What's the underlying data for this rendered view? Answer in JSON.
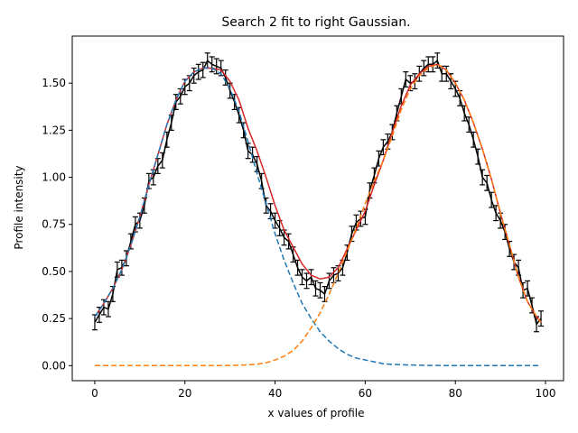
{
  "chart_data": {
    "type": "line",
    "title": "Search 2 fit to right Gaussian.",
    "xlabel": "x values of profile",
    "ylabel": "Profile intensity",
    "xlim": [
      -5,
      104
    ],
    "ylim": [
      -0.08,
      1.75
    ],
    "xticks": [
      0,
      20,
      40,
      60,
      80,
      100
    ],
    "xtick_labels": [
      "0",
      "20",
      "40",
      "60",
      "80",
      "100"
    ],
    "yticks": [
      0.0,
      0.25,
      0.5,
      0.75,
      1.0,
      1.25,
      1.5
    ],
    "ytick_labels": [
      "0.00",
      "0.25",
      "0.50",
      "0.75",
      "1.00",
      "1.25",
      "1.50"
    ],
    "grid": false,
    "legend": "none",
    "series": [
      {
        "style": "errorbar",
        "color": "#000000",
        "x": [
          0,
          1,
          2,
          3,
          4,
          5,
          6,
          7,
          8,
          9,
          10,
          11,
          12,
          13,
          14,
          15,
          16,
          17,
          18,
          19,
          20,
          21,
          22,
          23,
          24,
          25,
          26,
          27,
          28,
          29,
          30,
          31,
          32,
          33,
          34,
          35,
          36,
          37,
          38,
          39,
          40,
          41,
          42,
          43,
          44,
          45,
          46,
          47,
          48,
          49,
          50,
          51,
          52,
          53,
          54,
          55,
          56,
          57,
          58,
          59,
          60,
          61,
          62,
          63,
          64,
          65,
          66,
          67,
          68,
          69,
          70,
          71,
          72,
          73,
          74,
          75,
          76,
          77,
          78,
          79,
          80,
          81,
          82,
          83,
          84,
          85,
          86,
          87,
          88,
          89,
          90,
          91,
          92,
          93,
          94,
          95,
          96,
          97,
          98,
          99
        ],
        "y": [
          0.23,
          0.27,
          0.31,
          0.3,
          0.38,
          0.51,
          0.52,
          0.57,
          0.66,
          0.75,
          0.77,
          0.85,
          0.98,
          1.0,
          1.06,
          1.09,
          1.2,
          1.29,
          1.4,
          1.43,
          1.48,
          1.5,
          1.54,
          1.56,
          1.57,
          1.62,
          1.6,
          1.59,
          1.58,
          1.53,
          1.46,
          1.4,
          1.33,
          1.25,
          1.14,
          1.12,
          1.07,
          0.98,
          0.85,
          0.82,
          0.77,
          0.73,
          0.68,
          0.66,
          0.59,
          0.52,
          0.47,
          0.45,
          0.47,
          0.41,
          0.4,
          0.38,
          0.45,
          0.48,
          0.49,
          0.52,
          0.6,
          0.7,
          0.76,
          0.78,
          0.79,
          0.93,
          1.01,
          1.1,
          1.16,
          1.19,
          1.24,
          1.34,
          1.43,
          1.52,
          1.5,
          1.51,
          1.55,
          1.58,
          1.6,
          1.6,
          1.62,
          1.55,
          1.55,
          1.51,
          1.47,
          1.42,
          1.34,
          1.28,
          1.2,
          1.11,
          1.0,
          0.97,
          0.88,
          0.81,
          0.77,
          0.71,
          0.62,
          0.55,
          0.52,
          0.4,
          0.41,
          0.32,
          0.22,
          0.25
        ],
        "err": 0.04
      },
      {
        "style": "line",
        "color": "#d62728",
        "x": [
          0,
          2,
          4,
          6,
          8,
          10,
          12,
          14,
          16,
          18,
          20,
          22,
          24,
          26,
          28,
          30,
          32,
          34,
          36,
          38,
          40,
          42,
          44,
          46,
          48,
          50,
          52,
          54,
          56,
          58,
          60,
          62,
          64,
          66,
          68,
          70,
          72,
          74,
          76,
          78,
          80,
          82,
          84,
          86,
          88,
          90,
          92,
          94,
          96,
          98,
          99
        ],
        "y": [
          0.26,
          0.33,
          0.41,
          0.51,
          0.64,
          0.79,
          0.96,
          1.12,
          1.28,
          1.41,
          1.51,
          1.56,
          1.58,
          1.58,
          1.57,
          1.51,
          1.41,
          1.26,
          1.14,
          1.0,
          0.85,
          0.72,
          0.63,
          0.54,
          0.48,
          0.46,
          0.47,
          0.52,
          0.62,
          0.72,
          0.82,
          0.96,
          1.09,
          1.24,
          1.38,
          1.49,
          1.55,
          1.59,
          1.6,
          1.57,
          1.5,
          1.41,
          1.29,
          1.15,
          0.99,
          0.81,
          0.64,
          0.47,
          0.34,
          0.26,
          0.23
        ]
      },
      {
        "style": "dashed",
        "color": "#1f77b4",
        "x": [
          0,
          2,
          4,
          6,
          8,
          10,
          12,
          14,
          16,
          18,
          20,
          22,
          24,
          26,
          28,
          30,
          32,
          34,
          36,
          38,
          40,
          42,
          44,
          46,
          48,
          50,
          52,
          54,
          56,
          58,
          60,
          62,
          64,
          66,
          68,
          70,
          72,
          74,
          76,
          78,
          80,
          82,
          84,
          86,
          88,
          90,
          92,
          94,
          96,
          98,
          99
        ],
        "y": [
          0.26,
          0.33,
          0.41,
          0.51,
          0.64,
          0.79,
          0.96,
          1.12,
          1.28,
          1.41,
          1.51,
          1.56,
          1.58,
          1.58,
          1.55,
          1.47,
          1.35,
          1.19,
          1.02,
          0.86,
          0.7,
          0.56,
          0.44,
          0.33,
          0.25,
          0.18,
          0.13,
          0.09,
          0.06,
          0.04,
          0.03,
          0.02,
          0.01,
          0.007,
          0.005,
          0.003,
          0.002,
          0.001,
          0.001,
          0.0,
          0.0,
          0.0,
          0.0,
          0.0,
          0.0,
          0.0,
          0.0,
          0.0,
          0.0,
          0.0,
          0.0
        ]
      },
      {
        "style": "dashed",
        "color": "#ff7f0e",
        "x": [
          0,
          2,
          4,
          6,
          8,
          10,
          12,
          14,
          16,
          18,
          20,
          22,
          24,
          26,
          28,
          30,
          32,
          34,
          36,
          38,
          40,
          42,
          44,
          46,
          48,
          50,
          52,
          54,
          56,
          58,
          60,
          62,
          64,
          66,
          68,
          70,
          72,
          74,
          76,
          78,
          80,
          82,
          84,
          86,
          88,
          90,
          92,
          94,
          96,
          98,
          99
        ],
        "y": [
          0.0,
          0.0,
          0.0,
          0.0,
          0.0,
          0.0,
          0.0,
          0.0,
          0.0,
          0.0,
          0.0,
          0.0,
          0.0,
          0.0,
          0.0,
          0.001,
          0.002,
          0.004,
          0.008,
          0.015,
          0.03,
          0.05,
          0.08,
          0.13,
          0.2,
          0.28,
          0.38,
          0.49,
          0.61,
          0.73,
          0.86,
          0.98,
          1.09,
          1.22,
          1.36,
          1.47,
          1.54,
          1.58,
          1.6,
          1.57,
          1.5,
          1.41,
          1.29,
          1.15,
          0.99,
          0.81,
          0.64,
          0.47,
          0.34,
          0.26,
          0.23
        ]
      }
    ]
  }
}
